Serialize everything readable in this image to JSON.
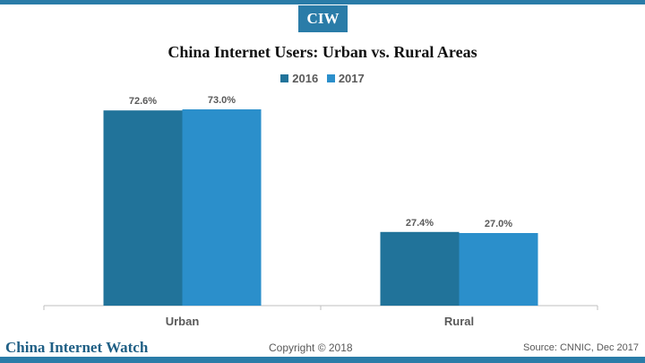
{
  "logo": "CIW",
  "footer": {
    "brand": "China Internet Watch",
    "copyright": "Copyright © 2018",
    "source": "Source: CNNIC, Dec 2017"
  },
  "colors": {
    "accent": "#2a7ca8",
    "series_2016": "#21739a",
    "series_2017": "#2b8fcb",
    "label": "#595959"
  },
  "chart_data": {
    "type": "bar",
    "title": "China Internet Users: Urban vs. Rural Areas",
    "categories": [
      "Urban",
      "Rural"
    ],
    "series": [
      {
        "name": "2016",
        "values": [
          72.6,
          27.4
        ],
        "labels": [
          "72.6%",
          "27.4%"
        ]
      },
      {
        "name": "2017",
        "values": [
          73.0,
          27.0
        ],
        "labels": [
          "73.0%",
          "27.0%"
        ]
      }
    ],
    "ylim": [
      0,
      100
    ],
    "grid": false,
    "legend": "top-center",
    "xlabel": "",
    "ylabel": ""
  }
}
